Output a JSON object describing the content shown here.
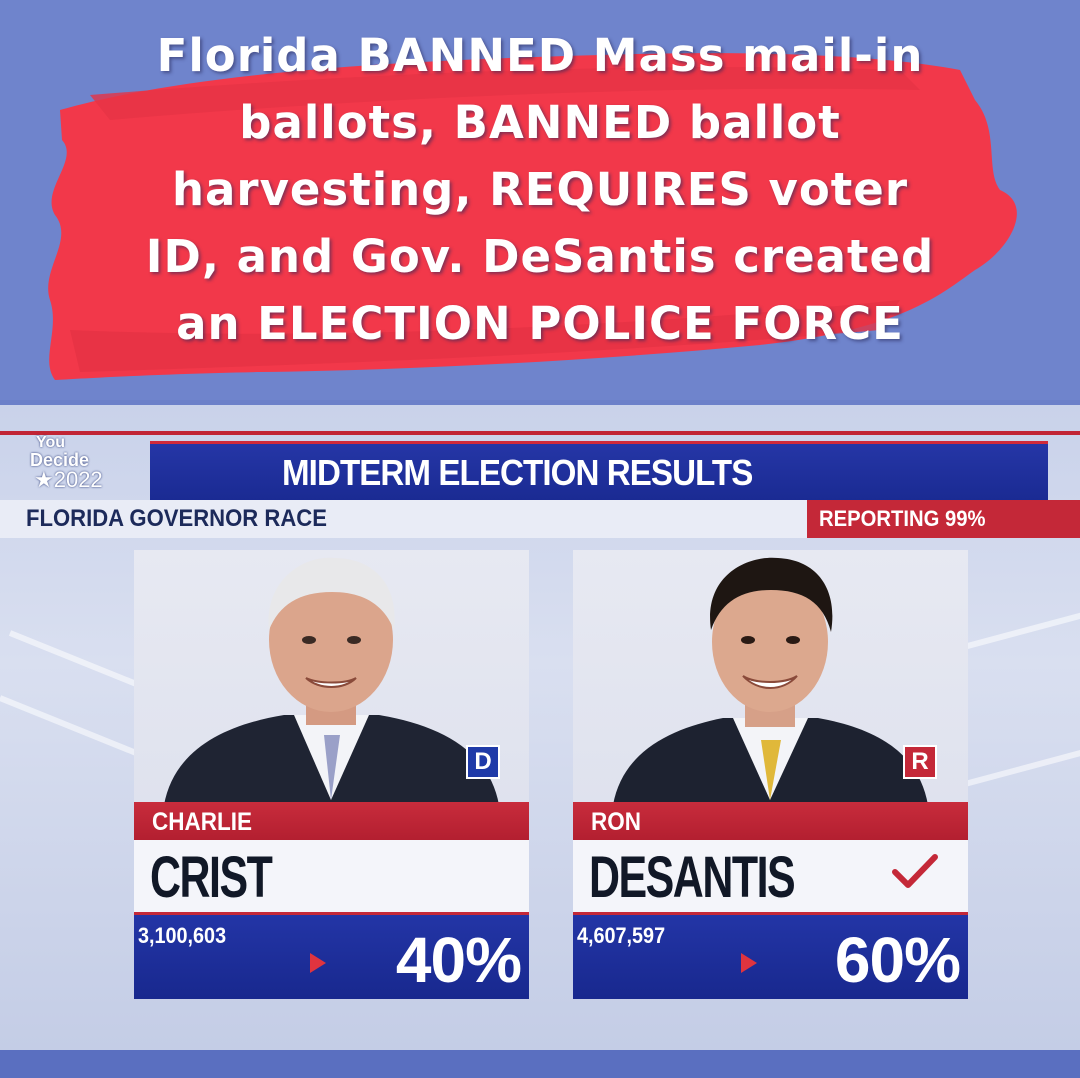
{
  "caption": {
    "lines": [
      "Florida BANNED Mass mail-in",
      "ballots, BANNED ballot",
      "harvesting, REQUIRES voter",
      "ID, and Gov. DeSantis created",
      "an ELECTION POLICE FORCE"
    ],
    "highlight_color": "#f0384a"
  },
  "broadcast": {
    "logo": {
      "line1": "You",
      "line2": "Decide",
      "line3": "★2022"
    },
    "title": "MIDTERM ELECTION RESULTS",
    "race": "FLORIDA GOVERNOR RACE",
    "reporting": "REPORTING 99%"
  },
  "candidates": [
    {
      "first": "CHARLIE",
      "last": "CRIST",
      "party": "D",
      "votes": "3,100,603",
      "percent": "40%",
      "party_color": "#1f3aa8",
      "winner": false
    },
    {
      "first": "RON",
      "last": "DESANTIS",
      "party": "R",
      "votes": "4,607,597",
      "percent": "60%",
      "party_color": "#c42838",
      "winner": true
    }
  ],
  "colors": {
    "navy": "#1a2a92",
    "red": "#c42838",
    "background": "#6b80c9"
  }
}
